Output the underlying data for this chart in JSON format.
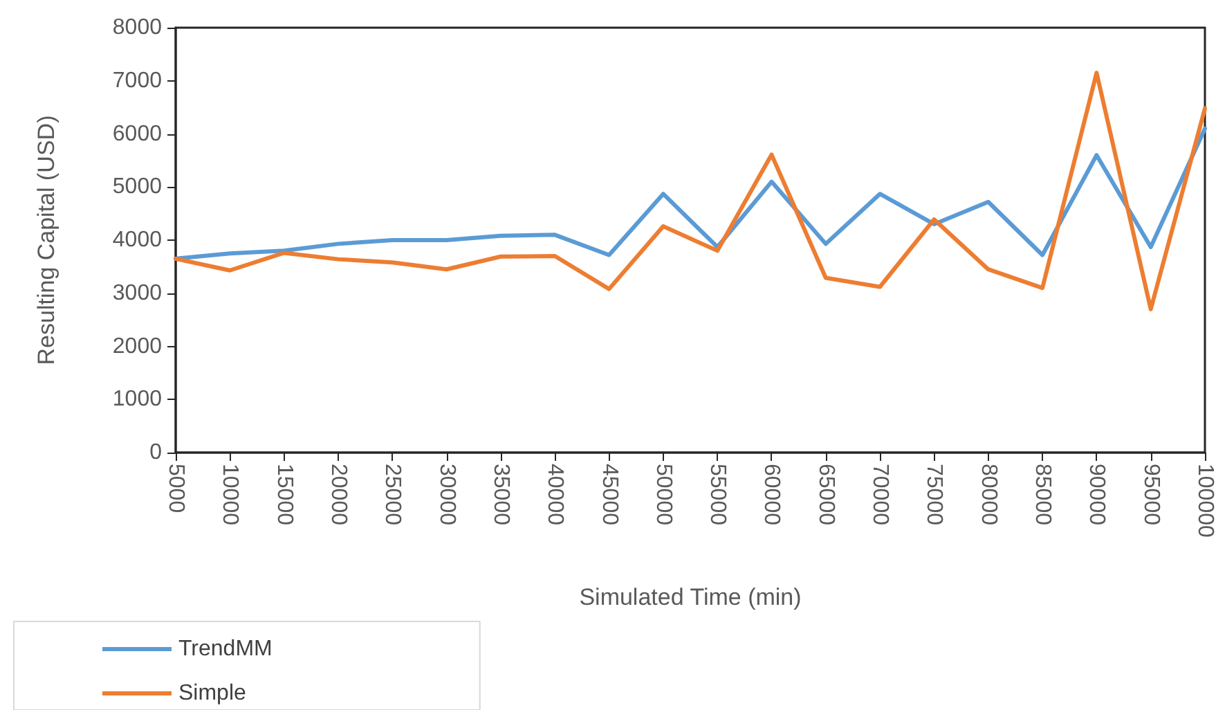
{
  "chart_data": {
    "type": "line",
    "xlabel": "Simulated Time (min)",
    "ylabel": "Resulting Capital (USD)",
    "categories": [
      "5000",
      "10000",
      "15000",
      "20000",
      "25000",
      "30000",
      "35000",
      "40000",
      "45000",
      "50000",
      "55000",
      "60000",
      "65000",
      "70000",
      "75000",
      "80000",
      "85000",
      "90000",
      "95000",
      "100000"
    ],
    "series": [
      {
        "name": "TrendMM",
        "color": "#5b9bd5",
        "values": [
          3650,
          3750,
          3800,
          3930,
          4000,
          4000,
          4080,
          4100,
          3720,
          4870,
          3870,
          5100,
          3930,
          4870,
          4300,
          4720,
          3720,
          5600,
          3870,
          6100
        ]
      },
      {
        "name": "Simple",
        "color": "#ed7d31",
        "values": [
          3650,
          3430,
          3760,
          3640,
          3580,
          3450,
          3690,
          3700,
          3080,
          4260,
          3800,
          5610,
          3290,
          3120,
          4390,
          3450,
          3100,
          7150,
          2700,
          6480
        ]
      }
    ],
    "ylim": [
      0,
      8000
    ],
    "yticks": [
      0,
      1000,
      2000,
      3000,
      4000,
      5000,
      6000,
      7000,
      8000
    ],
    "grid": false,
    "legend": "bottom left",
    "marker": "none",
    "line_style": "solid"
  }
}
